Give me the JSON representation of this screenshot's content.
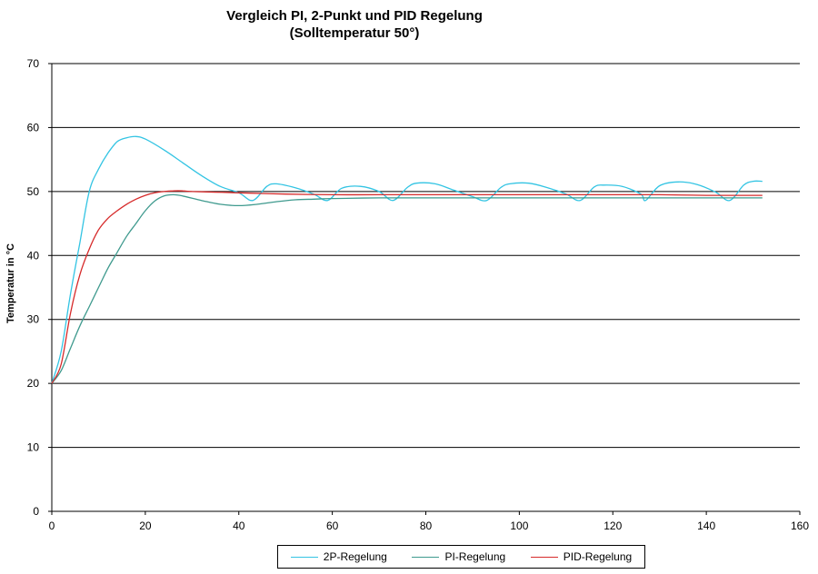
{
  "chart_data": {
    "type": "line",
    "title": "Vergleich PI, 2-Punkt und PID Regelung",
    "subtitle": "(Solltemperatur 50°)",
    "xlabel": "",
    "ylabel": "Temperatur in °C",
    "xlim": [
      0,
      160
    ],
    "ylim": [
      0,
      70
    ],
    "xticks": [
      0,
      20,
      40,
      60,
      80,
      100,
      120,
      140,
      160
    ],
    "yticks": [
      0,
      10,
      20,
      30,
      40,
      50,
      60,
      70
    ],
    "grid": "horizontal",
    "legend_position": "bottom",
    "series": [
      {
        "name": "2P-Regelung",
        "color": "#33c4e3",
        "x": [
          0,
          2,
          4,
          6,
          8,
          10,
          12,
          14,
          16,
          18,
          20,
          24,
          28,
          32,
          36,
          40,
          43,
          46,
          48,
          52,
          56,
          59,
          62,
          66,
          70,
          73,
          76,
          78,
          82,
          86,
          90,
          93,
          96,
          98,
          102,
          106,
          110,
          113,
          116,
          118,
          122,
          126,
          127,
          130,
          134,
          138,
          142,
          145,
          148,
          150,
          152
        ],
        "y": [
          20,
          25,
          34,
          42,
          50,
          53.5,
          56,
          57.8,
          58.4,
          58.6,
          58.2,
          56.5,
          54.5,
          52.5,
          50.8,
          49.8,
          48.6,
          50.8,
          51.2,
          50.6,
          49.6,
          48.6,
          50.5,
          50.8,
          50,
          48.6,
          50.6,
          51.3,
          51.2,
          50.2,
          49.2,
          48.6,
          50.6,
          51.2,
          51.3,
          50.6,
          49.6,
          48.6,
          50.7,
          51,
          50.8,
          49.6,
          48.6,
          50.9,
          51.5,
          51.1,
          49.9,
          48.6,
          51,
          51.6,
          51.6
        ]
      },
      {
        "name": "PI-Regelung",
        "color": "#3f9a8e",
        "x": [
          0,
          2,
          4,
          6,
          8,
          10,
          12,
          14,
          16,
          18,
          20,
          22,
          24,
          26,
          28,
          32,
          36,
          40,
          44,
          48,
          52,
          56,
          60,
          70,
          80,
          90,
          100,
          110,
          120,
          130,
          140,
          150,
          152
        ],
        "y": [
          20,
          22,
          25.5,
          29,
          32,
          35,
          38,
          40.5,
          43,
          45,
          47,
          48.5,
          49.3,
          49.5,
          49.3,
          48.6,
          48,
          47.8,
          48,
          48.4,
          48.7,
          48.8,
          48.9,
          49,
          49,
          49,
          49,
          49,
          49,
          49,
          49,
          49,
          49
        ]
      },
      {
        "name": "PID-Regelung",
        "color": "#d62a2a",
        "x": [
          0,
          2,
          4,
          6,
          8,
          10,
          12,
          14,
          16,
          18,
          20,
          22,
          24,
          26,
          28,
          30,
          35,
          40,
          50,
          60,
          70,
          80,
          90,
          100,
          110,
          120,
          130,
          140,
          150,
          152
        ],
        "y": [
          20,
          23,
          31,
          37,
          41,
          44,
          45.8,
          47,
          48,
          48.8,
          49.4,
          49.8,
          50,
          50.1,
          50.1,
          50,
          49.9,
          49.8,
          49.6,
          49.5,
          49.5,
          49.5,
          49.5,
          49.5,
          49.5,
          49.5,
          49.5,
          49.4,
          49.4,
          49.4
        ]
      }
    ]
  }
}
